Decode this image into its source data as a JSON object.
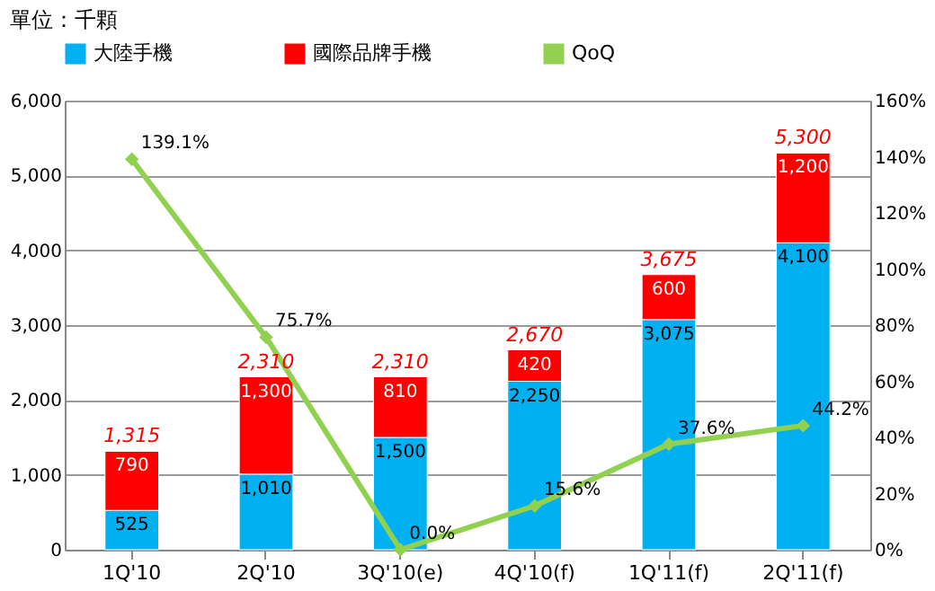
{
  "chart_data": {
    "type": "bar",
    "title": "單位：千顆",
    "stacked": true,
    "categories": [
      "1Q'10",
      "2Q'10",
      "3Q'10(e)",
      "4Q'10(f)",
      "1Q'11(f)",
      "2Q'11(f)"
    ],
    "series": [
      {
        "name": "大陸手機",
        "color": "#00b0f0",
        "values": [
          525,
          1010,
          1500,
          2250,
          3075,
          4100
        ],
        "value_labels": [
          "525",
          "1,010",
          "1,500",
          "2,250",
          "3,075",
          "4,100"
        ]
      },
      {
        "name": "國際品牌手機",
        "color": "#ff0000",
        "values": [
          790,
          1300,
          810,
          420,
          600,
          1200
        ],
        "value_labels": [
          "790",
          "1,300",
          "810",
          "420",
          "600",
          "1,200"
        ]
      },
      {
        "name": "QoQ",
        "type": "line",
        "axis": "y2",
        "color": "#92d050",
        "marker": "diamond",
        "values": [
          139.1,
          75.7,
          0.0,
          15.6,
          37.6,
          44.2
        ],
        "value_labels": [
          "139.1%",
          "75.7%",
          "0.0%",
          "15.6%",
          "37.6%",
          "44.2%"
        ]
      }
    ],
    "totals": [
      "1,315",
      "2,310",
      "2,310",
      "2,670",
      "3,675",
      "5,300"
    ],
    "ylim": [
      0,
      6000
    ],
    "yticks": [
      {
        "value": 0,
        "label": "0"
      },
      {
        "value": 1000,
        "label": "1,000"
      },
      {
        "value": 2000,
        "label": "2,000"
      },
      {
        "value": 3000,
        "label": "3,000"
      },
      {
        "value": 4000,
        "label": "4,000"
      },
      {
        "value": 5000,
        "label": "5,000"
      },
      {
        "value": 6000,
        "label": "6,000"
      }
    ],
    "y2lim": [
      0,
      160
    ],
    "y2ticks": [
      {
        "value": 0,
        "label": "0%"
      },
      {
        "value": 20,
        "label": "20%"
      },
      {
        "value": 40,
        "label": "40%"
      },
      {
        "value": 60,
        "label": "60%"
      },
      {
        "value": 80,
        "label": "80%"
      },
      {
        "value": 100,
        "label": "100%"
      },
      {
        "value": 120,
        "label": "120%"
      },
      {
        "value": 140,
        "label": "140%"
      },
      {
        "value": 160,
        "label": "160%"
      }
    ],
    "grid": "y",
    "legend": "top"
  }
}
